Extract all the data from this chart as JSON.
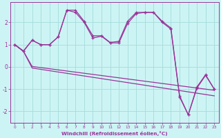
{
  "xlabel": "Windchill (Refroidissement éolien,°C)",
  "background_color": "#cdf4f4",
  "grid_color": "#a8dede",
  "line_color": "#993399",
  "ylim": [
    -2.5,
    2.9
  ],
  "xlim": [
    -0.5,
    23.5
  ],
  "yticks": [
    -2,
    -1,
    0,
    1,
    2
  ],
  "xticks": [
    0,
    1,
    2,
    3,
    4,
    5,
    6,
    7,
    8,
    9,
    10,
    11,
    12,
    13,
    14,
    15,
    16,
    17,
    18,
    19,
    20,
    21,
    22,
    23
  ],
  "series_upper_1": {
    "x": [
      0,
      1,
      2,
      3,
      4,
      5,
      6,
      7,
      8,
      9,
      10,
      11,
      12,
      13,
      14,
      15,
      16,
      17,
      18,
      19,
      20,
      21,
      22,
      23
    ],
    "y": [
      1.0,
      0.7,
      1.2,
      1.0,
      1.0,
      1.35,
      2.55,
      2.55,
      2.05,
      1.4,
      1.4,
      1.1,
      1.15,
      2.05,
      2.45,
      2.45,
      2.45,
      2.05,
      1.75,
      -1.3,
      -2.15,
      -0.9,
      -0.35,
      -1.0
    ]
  },
  "series_upper_2": {
    "x": [
      0,
      1,
      2,
      3,
      4,
      5,
      6,
      7,
      8,
      9,
      10,
      11,
      12,
      13,
      14,
      15,
      16,
      17,
      18,
      19,
      20,
      21,
      22,
      23
    ],
    "y": [
      1.0,
      0.72,
      1.2,
      1.0,
      1.0,
      1.35,
      2.55,
      2.45,
      2.0,
      1.3,
      1.38,
      1.08,
      1.08,
      1.95,
      2.4,
      2.45,
      2.45,
      2.0,
      1.7,
      -1.35,
      -2.15,
      -0.95,
      -0.38,
      -1.0
    ]
  },
  "series_lower_1": {
    "x": [
      0,
      1,
      2,
      23
    ],
    "y": [
      1.0,
      0.7,
      0.02,
      -1.05
    ]
  },
  "series_lower_2": {
    "x": [
      0,
      1,
      2,
      23
    ],
    "y": [
      1.0,
      0.7,
      -0.05,
      -1.3
    ]
  }
}
